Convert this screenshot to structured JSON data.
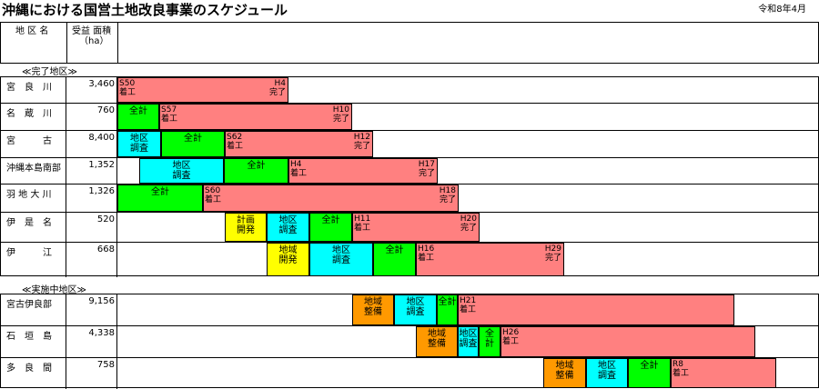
{
  "title": "沖縄における国営土地改良事業のスケジュール",
  "date": "令和8年4月",
  "header": {
    "district": "地 区 名",
    "area": "受益 面積",
    "unit": "（ha）"
  },
  "chart_data": {
    "type": "gantt",
    "colors": {
      "計画開発": "#ffff00",
      "地域開発": "#ffff00",
      "地区調査": "#00ffff",
      "地域整備": "#ff9900",
      "全計": "#00ff00",
      "着工": "#ff8080",
      "区間": "#ff8080"
    },
    "sections": [
      {
        "label": "≪完了地区≫",
        "rows": [
          {
            "name": "宮　良　川",
            "area": "3,460",
            "segments": [
              {
                "type": "区間",
                "from": 128,
                "to": 316,
                "start": "S50\n着工",
                "end": "H4\n完了"
              }
            ]
          },
          {
            "name": "名　蔵　川",
            "area": "760",
            "segments": [
              {
                "type": "全計",
                "from": 128,
                "to": 174,
                "label": "全計"
              },
              {
                "type": "区間",
                "from": 174,
                "to": 386,
                "start": "S57\n着工",
                "end": "H10\n完了"
              }
            ]
          },
          {
            "name": "宮　　　古",
            "area": "8,400",
            "segments": [
              {
                "type": "地区調査",
                "from": 128,
                "to": 176,
                "label": "地区\n調査"
              },
              {
                "type": "全計",
                "from": 176,
                "to": 246,
                "label": "全計"
              },
              {
                "type": "区間",
                "from": 246,
                "to": 409,
                "start": "S62\n着工",
                "end": "H12\n完了"
              }
            ]
          },
          {
            "name": "沖縄本島南部",
            "area": "1,352",
            "segments": [
              {
                "type": "地区調査",
                "from": 152,
                "to": 245,
                "label": "地区\n調査"
              },
              {
                "type": "全計",
                "from": 245,
                "to": 316,
                "label": "全計"
              },
              {
                "type": "区間",
                "from": 316,
                "to": 480,
                "start": "H4\n着工",
                "end": "H17\n完了"
              }
            ]
          },
          {
            "name": "羽 地 大 川",
            "area": "1,326",
            "segments": [
              {
                "type": "全計",
                "from": 128,
                "to": 222,
                "label": "全計"
              },
              {
                "type": "区間",
                "from": 222,
                "to": 503,
                "start": "S60\n着工",
                "end": "H18\n完了"
              }
            ]
          },
          {
            "name": "伊　是　名",
            "area": "520",
            "segments": [
              {
                "type": "計画開発",
                "from": 246,
                "to": 292,
                "label": "計画\n開発"
              },
              {
                "type": "地区調査",
                "from": 292,
                "to": 339,
                "label": "地区\n調査"
              },
              {
                "type": "全計",
                "from": 339,
                "to": 386,
                "label": "全計"
              },
              {
                "type": "区間",
                "from": 386,
                "to": 526,
                "start": "H11\n着工",
                "end": "H20\n完了"
              }
            ]
          },
          {
            "name": "伊　　　江",
            "area": "668",
            "segments": [
              {
                "type": "地域開発",
                "from": 292,
                "to": 339,
                "label": "地域\n開発"
              },
              {
                "type": "地区調査",
                "from": 339,
                "to": 409,
                "label": "地区\n調査"
              },
              {
                "type": "全計",
                "from": 409,
                "to": 456,
                "label": "全計"
              },
              {
                "type": "区間",
                "from": 456,
                "to": 619,
                "start": "H16\n着工",
                "end": "H29\n完了"
              }
            ]
          }
        ]
      },
      {
        "label": "≪実施中地区≫",
        "rows": [
          {
            "name": "宮古伊良部",
            "area": "9,156",
            "segments": [
              {
                "type": "地域整備",
                "from": 386,
                "to": 432,
                "label": "地域\n整備"
              },
              {
                "type": "地区調査",
                "from": 432,
                "to": 479,
                "label": "地区\n調査"
              },
              {
                "type": "全計",
                "from": 479,
                "to": 502,
                "label": "全計"
              },
              {
                "type": "区間",
                "from": 502,
                "to": 806,
                "start": "H21\n着工",
                "end": ""
              }
            ]
          },
          {
            "name": "石　垣　島",
            "area": "4,338",
            "segments": [
              {
                "type": "地域整備",
                "from": 456,
                "to": 502,
                "label": "地域\n整備"
              },
              {
                "type": "地区調査",
                "from": 502,
                "to": 525,
                "label": "地区\n調査"
              },
              {
                "type": "全計",
                "from": 525,
                "to": 549,
                "label": "全\n計"
              },
              {
                "type": "区間",
                "from": 549,
                "to": 829,
                "start": "H26\n着工",
                "end": ""
              }
            ]
          },
          {
            "name": "多　良　間",
            "area": "758",
            "segments": [
              {
                "type": "地域整備",
                "from": 596,
                "to": 643,
                "label": "地域\n整備"
              },
              {
                "type": "地区調査",
                "from": 643,
                "to": 689,
                "label": "地区\n調査"
              },
              {
                "type": "全計",
                "from": 689,
                "to": 736,
                "label": "全計"
              },
              {
                "type": "区間",
                "from": 736,
                "to": 852,
                "start": "R8\n着工",
                "end": ""
              }
            ]
          }
        ]
      }
    ]
  }
}
